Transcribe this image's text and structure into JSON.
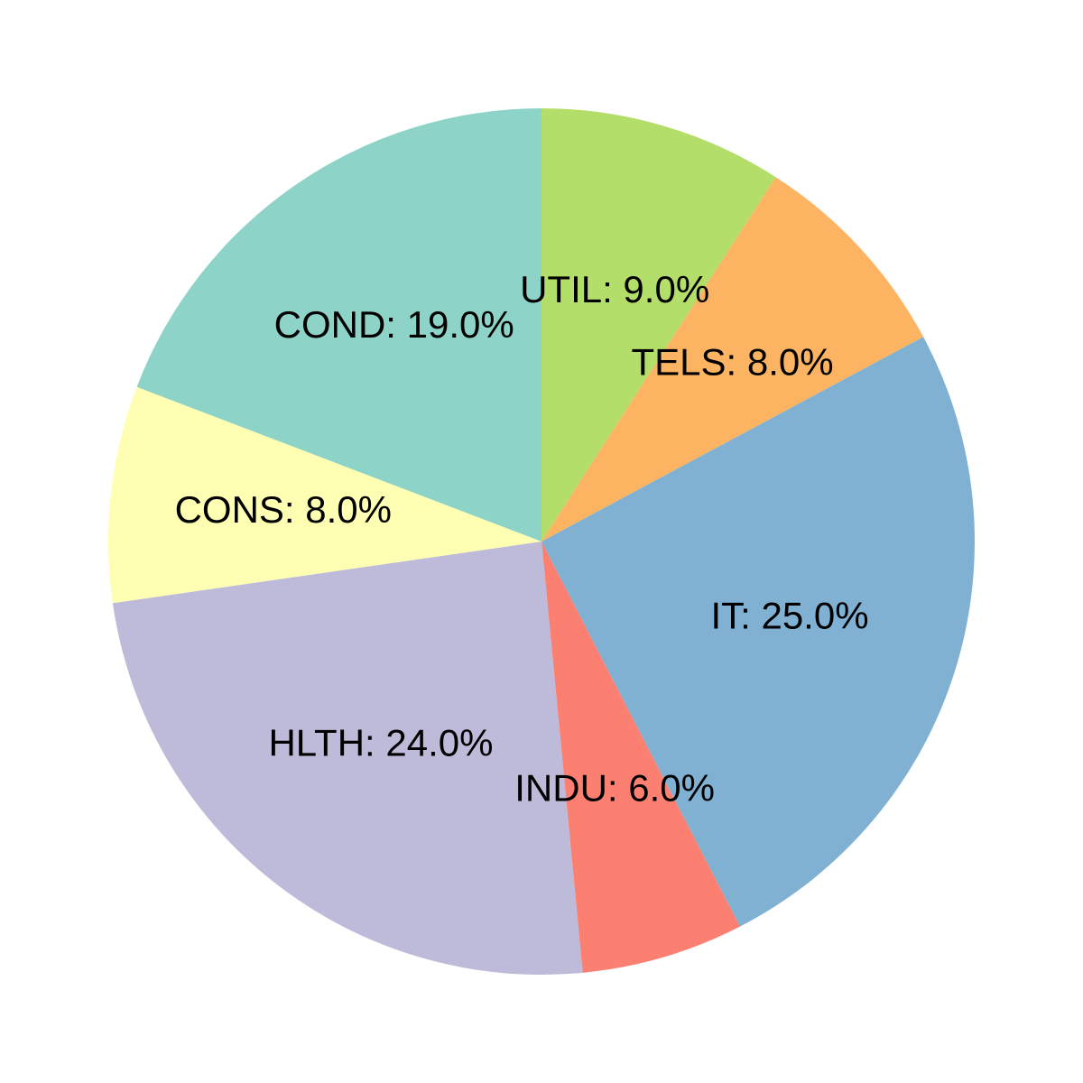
{
  "chart_data": {
    "type": "pie",
    "title": "",
    "start": "top",
    "direction": "clockwise",
    "slices": [
      {
        "category": "UTIL",
        "value": 9.0,
        "label": "UTIL: 9.0%",
        "color": "#b3de69"
      },
      {
        "category": "TELS",
        "value": 8.0,
        "label": "TELS: 8.0%",
        "color": "#fdb462"
      },
      {
        "category": "IT",
        "value": 25.0,
        "label": "IT: 25.0%",
        "color": "#80b1d3"
      },
      {
        "category": "INDU",
        "value": 6.0,
        "label": "INDU: 6.0%",
        "color": "#fb8072"
      },
      {
        "category": "HLTH",
        "value": 24.0,
        "label": "HLTH: 24.0%",
        "color": "#bebada"
      },
      {
        "category": "CONS",
        "value": 8.0,
        "label": "CONS: 8.0%",
        "color": "#ffffb3"
      },
      {
        "category": "COND",
        "value": 19.0,
        "label": "COND: 19.0%",
        "color": "#8dd3c7"
      }
    ]
  }
}
